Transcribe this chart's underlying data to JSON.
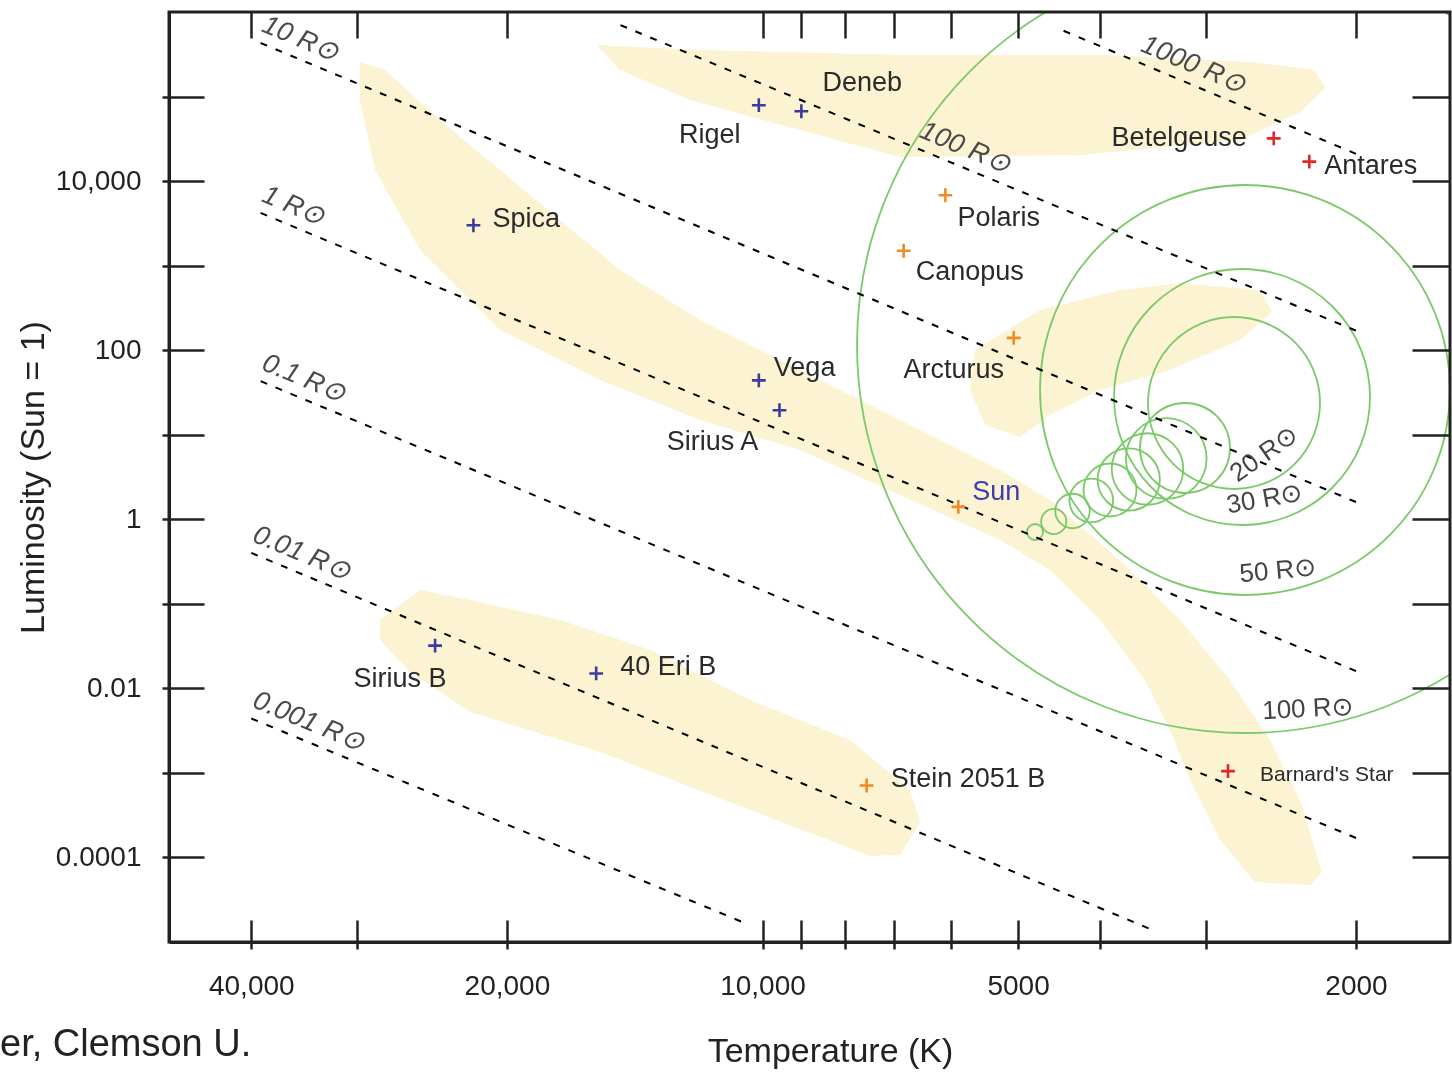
{
  "chart_data": {
    "type": "scatter",
    "xlabel": "Temperature (K)",
    "ylabel": "Luminosity (Sun = 1)",
    "log": "xy",
    "xlim": [
      50000,
      1550
    ],
    "ylim": [
      1e-05,
      1000000
    ],
    "xticks": [
      {
        "value": 40000,
        "label": "40,000"
      },
      {
        "value": 30000,
        "label": null
      },
      {
        "value": 20000,
        "label": "20,000"
      },
      {
        "value": 10000,
        "label": "10,000"
      },
      {
        "value": 9000,
        "label": null
      },
      {
        "value": 8000,
        "label": null
      },
      {
        "value": 7000,
        "label": null
      },
      {
        "value": 6000,
        "label": null
      },
      5000,
      {
        "value": 4000,
        "label": null
      },
      {
        "value": 3000,
        "label": null
      },
      2000
    ],
    "yticks": [
      {
        "value": 100000,
        "label": null
      },
      {
        "value": 10000,
        "label": "10,000"
      },
      {
        "value": 1000,
        "label": null
      },
      100,
      {
        "value": 10,
        "label": null
      },
      1,
      {
        "value": 0.1,
        "label": null
      },
      0.01,
      {
        "value": 0.001,
        "label": null
      },
      0.0001
    ],
    "grid": false,
    "legend": false,
    "line_style": "dashed",
    "series": [
      {
        "type": "scatter",
        "marker": "cross",
        "color": "#3c3c9c",
        "x": [
          10100,
          9000,
          21900,
          10100,
          9550,
          24300,
          15700
        ],
        "values": [
          79000,
          67000,
          3000,
          44,
          19.5,
          0.032,
          0.015
        ]
      },
      {
        "type": "scatter",
        "marker": "cross",
        "color": "#f08a28",
        "x": [
          5880,
          6090,
          6820,
          5060,
          7540
        ],
        "values": [
          1.4,
          6800,
          1500,
          140,
          0.00071
        ]
      },
      {
        "type": "scatter",
        "marker": "cross",
        "color": "#e02828",
        "x": [
          2500,
          2270,
          2830
        ],
        "values": [
          32000,
          17000,
          0.00105
        ]
      },
      {
        "type": "line",
        "name": "1000 R⊙",
        "color": "#000000",
        "x": [
          4420,
          2000
        ],
        "values": [
          600000,
          21000
        ]
      },
      {
        "type": "line",
        "name": "100 R⊙",
        "color": "#000000",
        "x": [
          14700,
          2000
        ],
        "values": [
          700000,
          170
        ]
      },
      {
        "type": "line",
        "name": "10 R⊙",
        "color": "#000000",
        "x": [
          39000,
          2000
        ],
        "values": [
          430000,
          1.6
        ]
      },
      {
        "type": "line",
        "name": "1 R⊙",
        "color": "#000000",
        "x": [
          39000,
          2000
        ],
        "values": [
          4200,
          0.016
        ]
      },
      {
        "type": "line",
        "name": "0.1 R⊙",
        "color": "#000000",
        "x": [
          39000,
          2000
        ],
        "values": [
          43,
          0.00017
        ]
      },
      {
        "type": "line",
        "name": "0.01 R⊙",
        "color": "#000000",
        "x": [
          40000,
          3510
        ],
        "values": [
          0.4,
          1.45e-05
        ]
      },
      {
        "type": "line",
        "name": "0.001 R⊙",
        "color": "#000000",
        "x": [
          40000,
          10600
        ],
        "values": [
          0.0044,
          1.75e-05
        ]
      }
    ],
    "annotations": [
      {
        "text": "Rigel",
        "x": 10100,
        "y": 79000
      },
      {
        "text": "Deneb",
        "x": 9000,
        "y": 67000
      },
      {
        "text": "Spica",
        "x": 21900,
        "y": 3000
      },
      {
        "text": "Vega",
        "x": 10100,
        "y": 44
      },
      {
        "text": "Sirius A",
        "x": 9550,
        "y": 19.5
      },
      {
        "text": "Sun",
        "x": 5880,
        "y": 1.4
      },
      {
        "text": "Polaris",
        "x": 6090,
        "y": 6800
      },
      {
        "text": "Canopus",
        "x": 6820,
        "y": 1500
      },
      {
        "text": "Arcturus",
        "x": 5060,
        "y": 140
      },
      {
        "text": "Betelgeuse",
        "x": 2500,
        "y": 32000
      },
      {
        "text": "Antares",
        "x": 2270,
        "y": 17000
      },
      {
        "text": "Sirius B",
        "x": 24300,
        "y": 0.032
      },
      {
        "text": "40 Eri B",
        "x": 15700,
        "y": 0.015
      },
      {
        "text": "Stein 2051 B",
        "x": 7540,
        "y": 0.00071
      },
      {
        "text": "Barnard's Star",
        "x": 2830,
        "y": 0.00105
      },
      "20 R⊙",
      "30 R⊙",
      "50 R⊙",
      "100 R⊙",
      "er, Clemson U."
    ]
  }
}
